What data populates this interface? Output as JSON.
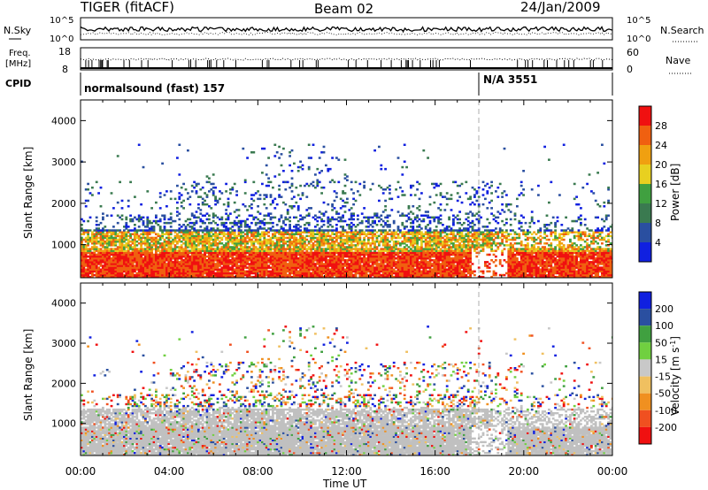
{
  "header": {
    "station": "TIGER (fitACF)",
    "beam": "Beam 02",
    "date": "24/Jan/2009"
  },
  "status_panels": {
    "nsky_label": "N.Sky",
    "nsky_ticks": [
      "10^5",
      "10^0"
    ],
    "nsearch_label": "N.Search",
    "nsearch_ticks": [
      "10^5",
      "10^0"
    ],
    "freq_label_line1": "Freq.",
    "freq_label_line2": "[MHz]",
    "freq_ticks": [
      "18",
      "8"
    ],
    "nave_label": "Nave",
    "nave_ticks": [
      "60",
      "0"
    ],
    "cpid_label": "CPID",
    "cpid_segments": [
      {
        "text": "normalsound (fast) 157",
        "start_hour": 0.0
      },
      {
        "text": "N/A 3551",
        "start_hour": 18.0
      }
    ]
  },
  "colors": {
    "power_scale": [
      "#1020e0",
      "#2a4fa0",
      "#3a7a50",
      "#40a040",
      "#e8d020",
      "#f0a010",
      "#f06010",
      "#f01010"
    ],
    "velocity_scale": [
      "#f01010",
      "#f05020",
      "#f09020",
      "#f0c060",
      "#c8c8c8",
      "#70d040",
      "#40a040",
      "#2a4fa0",
      "#1020e0"
    ],
    "ground_scatter": "#c0c0c0"
  },
  "chart_data": [
    {
      "type": "heatmap",
      "name": "power-panel",
      "ylabel": "Slant Range [km]",
      "xlabel": "Time UT",
      "xlim": [
        0,
        24
      ],
      "ylim": [
        200,
        4500
      ],
      "x_ticks": [
        "00:00",
        "04:00",
        "08:00",
        "12:00",
        "16:00",
        "20:00",
        "00:00"
      ],
      "y_ticks": [
        "1000",
        "2000",
        "3000",
        "4000"
      ],
      "colorbar": {
        "label": "Power [dB]",
        "ticks": [
          "28",
          "24",
          "20",
          "16",
          "12",
          "8",
          "4"
        ],
        "range": [
          0,
          30
        ]
      },
      "features": [
        {
          "region": "near range band",
          "hours": [
            0,
            24
          ],
          "range_km": [
            300,
            900
          ],
          "power_db": 28
        },
        {
          "region": "mid band",
          "hours": [
            1,
            18
          ],
          "range_km": [
            900,
            1300
          ],
          "power_db": 18
        },
        {
          "region": "patchy far scatter",
          "hours": [
            3,
            20
          ],
          "range_km": [
            1500,
            3200
          ],
          "power_db": 8
        }
      ]
    },
    {
      "type": "heatmap",
      "name": "velocity-panel",
      "ylabel": "Slant Range [km]",
      "xlabel": "Time UT",
      "xlim": [
        0,
        24
      ],
      "ylim": [
        200,
        4500
      ],
      "x_ticks": [
        "00:00",
        "04:00",
        "08:00",
        "12:00",
        "16:00",
        "20:00",
        "00:00"
      ],
      "y_ticks": [
        "1000",
        "2000",
        "3000",
        "4000"
      ],
      "colorbar": {
        "label": "Velocity [m s^-1]",
        "ticks": [
          "200",
          "100",
          "50",
          "15",
          "-15",
          "-50",
          "-100",
          "-200"
        ],
        "range": [
          -250,
          250
        ]
      },
      "features": [
        {
          "region": "ground scatter",
          "hours": [
            0,
            24
          ],
          "range_km": [
            300,
            1400
          ],
          "velocity": 0
        },
        {
          "region": "far scatter",
          "hours": [
            8,
            16
          ],
          "range_km": [
            1800,
            2400
          ],
          "velocity": 40
        }
      ]
    }
  ]
}
